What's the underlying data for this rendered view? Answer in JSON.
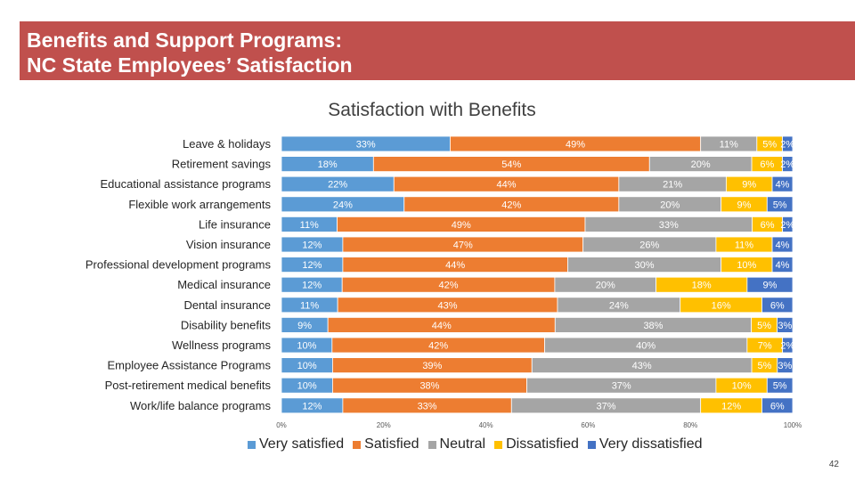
{
  "slide": {
    "title_line1": "Benefits and Support Programs:",
    "title_line2": "NC State Employees’ Satisfaction",
    "page_number": "42"
  },
  "colors": {
    "banner": "#c0504d",
    "series": [
      "#5b9bd5",
      "#ed7d31",
      "#a5a5a5",
      "#ffc000",
      "#4472c4"
    ]
  },
  "chart_data": {
    "type": "bar",
    "orientation": "horizontal",
    "stacked": "100%",
    "title": "Satisfaction with Benefits",
    "categories": [
      "Leave & holidays",
      "Retirement savings",
      "Educational assistance programs",
      "Flexible work arrangements",
      "Life insurance",
      "Vision insurance",
      "Professional development programs",
      "Medical insurance",
      "Dental insurance",
      "Disability benefits",
      "Wellness programs",
      "Employee Assistance Programs",
      "Post-retirement medical benefits",
      "Work/life balance programs"
    ],
    "series": [
      {
        "name": "Very satisfied",
        "values": [
          33,
          18,
          22,
          24,
          11,
          12,
          12,
          12,
          11,
          9,
          10,
          10,
          10,
          12
        ]
      },
      {
        "name": "Satisfied",
        "values": [
          49,
          54,
          44,
          42,
          49,
          47,
          44,
          42,
          43,
          44,
          42,
          39,
          38,
          33
        ]
      },
      {
        "name": "Neutral",
        "values": [
          11,
          20,
          21,
          20,
          33,
          26,
          30,
          20,
          24,
          38,
          40,
          43,
          37,
          37
        ]
      },
      {
        "name": "Dissatisfied",
        "values": [
          5,
          6,
          9,
          9,
          6,
          11,
          10,
          18,
          16,
          5,
          7,
          5,
          10,
          12
        ]
      },
      {
        "name": "Very dissatisfied",
        "values": [
          2,
          2,
          4,
          5,
          2,
          4,
          4,
          9,
          6,
          3,
          2,
          3,
          5,
          6
        ]
      }
    ],
    "x_ticks": [
      "0%",
      "20%",
      "40%",
      "60%",
      "80%",
      "100%"
    ],
    "xlim": [
      0,
      100
    ],
    "legend_position": "bottom"
  }
}
